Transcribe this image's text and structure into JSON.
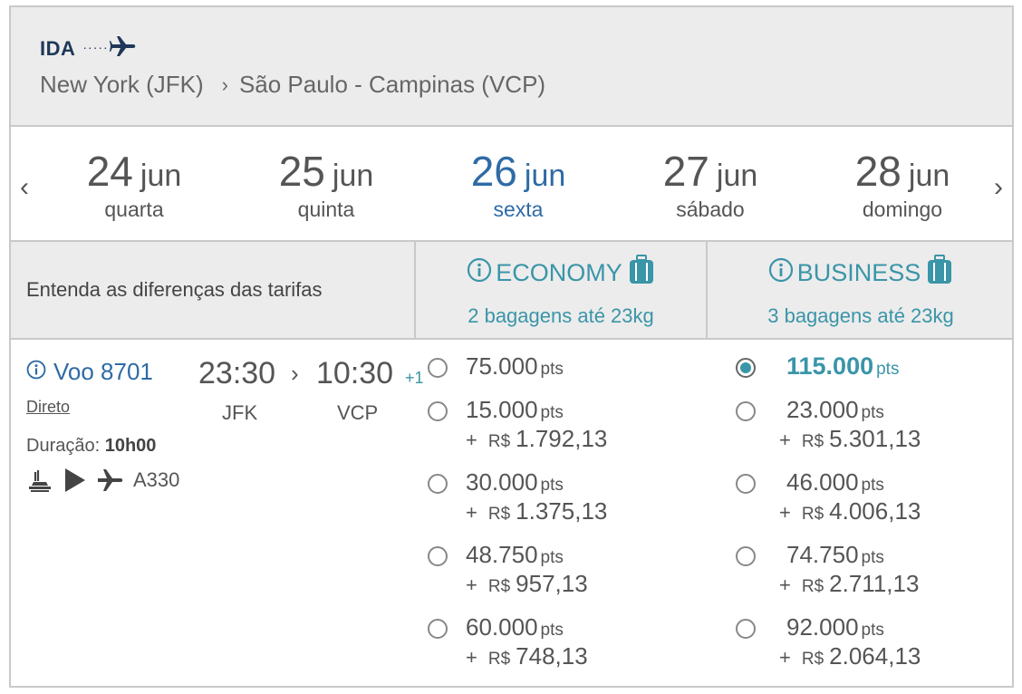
{
  "header": {
    "direction_label": "IDA",
    "origin": "New York (JFK)",
    "destination": "São Paulo - Campinas (VCP)"
  },
  "dates": [
    {
      "day": "24",
      "month": "jun",
      "weekday": "quarta",
      "active": false
    },
    {
      "day": "25",
      "month": "jun",
      "weekday": "quinta",
      "active": false
    },
    {
      "day": "26",
      "month": "jun",
      "weekday": "sexta",
      "active": true
    },
    {
      "day": "27",
      "month": "jun",
      "weekday": "sábado",
      "active": false
    },
    {
      "day": "28",
      "month": "jun",
      "weekday": "domingo",
      "active": false
    }
  ],
  "nav": {
    "prev": "‹",
    "next": "›"
  },
  "fare_header": {
    "diff_label": "Entenda as diferenças das tarifas",
    "economy": {
      "name": "ECONOMY",
      "baggage": "2 bagagens até 23kg"
    },
    "business": {
      "name": "BUSINESS",
      "baggage": "3 bagagens até 23kg"
    }
  },
  "flight": {
    "voo_label": "Voo 8701",
    "departure_time": "23:30",
    "arrival_time": "10:30",
    "plus_day": "+1",
    "origin_code": "JFK",
    "destination_code": "VCP",
    "stops": "Direto",
    "duration_label": "Duração:",
    "duration_value": "10h00",
    "aircraft": "A330"
  },
  "fares": {
    "pts_unit": "pts",
    "plus": "+",
    "currency": "R$",
    "economy": [
      {
        "points": "75.000",
        "money": ""
      },
      {
        "points": "15.000",
        "money": "1.792,13"
      },
      {
        "points": "30.000",
        "money": "1.375,13"
      },
      {
        "points": "48.750",
        "money": "957,13"
      },
      {
        "points": "60.000",
        "money": "748,13"
      }
    ],
    "business": [
      {
        "points": "115.000",
        "money": "",
        "selected": true
      },
      {
        "points": "23.000",
        "money": "5.301,13"
      },
      {
        "points": "46.000",
        "money": "4.006,13"
      },
      {
        "points": "74.750",
        "money": "2.711,13"
      },
      {
        "points": "92.000",
        "money": "2.064,13"
      }
    ]
  },
  "colors": {
    "accent": "#3a95a8",
    "link": "#2f6ba5",
    "navy": "#1f3759",
    "panel": "#ececec"
  },
  "icons": [
    "plane-icon",
    "info-icon",
    "baggage-icon",
    "meal-icon",
    "play-icon",
    "chevron-left-icon",
    "chevron-right-icon"
  ]
}
